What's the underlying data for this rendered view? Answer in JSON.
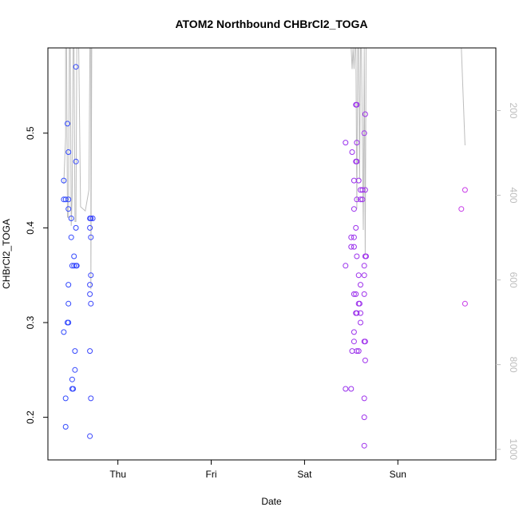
{
  "chart_data": {
    "type": "scatter",
    "title": "ATOM2 Northbound CHBrCl2_TOGA",
    "xlabel": "Date",
    "ylabel": "CHBrCl2_TOGA",
    "x_ticks": [
      "Thu",
      "Fri",
      "Sat",
      "Sun"
    ],
    "x_tick_positions": [
      1,
      2,
      3,
      4
    ],
    "xlim": [
      0.25,
      5.05
    ],
    "ylim": [
      0.155,
      0.59
    ],
    "y_ticks": [
      0.2,
      0.3,
      0.4,
      0.5
    ],
    "y_tick_labels": [
      "0.2",
      "0.3",
      "0.4",
      "0.5"
    ],
    "y2_ticks": [
      200,
      400,
      600,
      800,
      1000
    ],
    "y2_tick_labels": [
      "200",
      "400",
      "600",
      "800",
      "1000"
    ],
    "y2lim": [
      1025,
      52
    ],
    "y2_color": "#bdbdbd",
    "grid": false,
    "marker": "open-circle",
    "color_scale": [
      "#2b4cff",
      "#7a2bf0",
      "#d43be6"
    ],
    "points": [
      {
        "x": 0.42,
        "y": 0.45
      },
      {
        "x": 0.42,
        "y": 0.43
      },
      {
        "x": 0.42,
        "y": 0.29
      },
      {
        "x": 0.44,
        "y": 0.43
      },
      {
        "x": 0.44,
        "y": 0.22
      },
      {
        "x": 0.44,
        "y": 0.19
      },
      {
        "x": 0.46,
        "y": 0.51
      },
      {
        "x": 0.47,
        "y": 0.48
      },
      {
        "x": 0.47,
        "y": 0.43
      },
      {
        "x": 0.47,
        "y": 0.42
      },
      {
        "x": 0.47,
        "y": 0.34
      },
      {
        "x": 0.47,
        "y": 0.32
      },
      {
        "x": 0.47,
        "y": 0.3
      },
      {
        "x": 0.46,
        "y": 0.3
      },
      {
        "x": 0.5,
        "y": 0.41
      },
      {
        "x": 0.5,
        "y": 0.39
      },
      {
        "x": 0.51,
        "y": 0.36
      },
      {
        "x": 0.51,
        "y": 0.24
      },
      {
        "x": 0.51,
        "y": 0.23
      },
      {
        "x": 0.52,
        "y": 0.23
      },
      {
        "x": 0.53,
        "y": 0.37
      },
      {
        "x": 0.53,
        "y": 0.36
      },
      {
        "x": 0.54,
        "y": 0.27
      },
      {
        "x": 0.54,
        "y": 0.25
      },
      {
        "x": 0.55,
        "y": 0.57
      },
      {
        "x": 0.55,
        "y": 0.47
      },
      {
        "x": 0.55,
        "y": 0.4
      },
      {
        "x": 0.55,
        "y": 0.36
      },
      {
        "x": 0.56,
        "y": 0.36
      },
      {
        "x": 0.7,
        "y": 0.41
      },
      {
        "x": 0.7,
        "y": 0.4
      },
      {
        "x": 0.7,
        "y": 0.34
      },
      {
        "x": 0.7,
        "y": 0.33
      },
      {
        "x": 0.7,
        "y": 0.27
      },
      {
        "x": 0.7,
        "y": 0.18
      },
      {
        "x": 0.71,
        "y": 0.41
      },
      {
        "x": 0.71,
        "y": 0.39
      },
      {
        "x": 0.71,
        "y": 0.35
      },
      {
        "x": 0.71,
        "y": 0.32
      },
      {
        "x": 0.71,
        "y": 0.22
      },
      {
        "x": 0.73,
        "y": 0.41
      },
      {
        "x": 3.44,
        "y": 0.49
      },
      {
        "x": 3.44,
        "y": 0.36
      },
      {
        "x": 3.44,
        "y": 0.23
      },
      {
        "x": 3.5,
        "y": 0.39
      },
      {
        "x": 3.5,
        "y": 0.38
      },
      {
        "x": 3.5,
        "y": 0.23
      },
      {
        "x": 3.51,
        "y": 0.48
      },
      {
        "x": 3.51,
        "y": 0.27
      },
      {
        "x": 3.53,
        "y": 0.45
      },
      {
        "x": 3.53,
        "y": 0.42
      },
      {
        "x": 3.53,
        "y": 0.39
      },
      {
        "x": 3.53,
        "y": 0.38
      },
      {
        "x": 3.53,
        "y": 0.33
      },
      {
        "x": 3.53,
        "y": 0.29
      },
      {
        "x": 3.53,
        "y": 0.28
      },
      {
        "x": 3.55,
        "y": 0.53
      },
      {
        "x": 3.55,
        "y": 0.47
      },
      {
        "x": 3.55,
        "y": 0.4
      },
      {
        "x": 3.55,
        "y": 0.33
      },
      {
        "x": 3.55,
        "y": 0.31
      },
      {
        "x": 3.56,
        "y": 0.53
      },
      {
        "x": 3.56,
        "y": 0.49
      },
      {
        "x": 3.56,
        "y": 0.47
      },
      {
        "x": 3.56,
        "y": 0.43
      },
      {
        "x": 3.56,
        "y": 0.37
      },
      {
        "x": 3.56,
        "y": 0.31
      },
      {
        "x": 3.56,
        "y": 0.27
      },
      {
        "x": 3.58,
        "y": 0.45
      },
      {
        "x": 3.58,
        "y": 0.35
      },
      {
        "x": 3.58,
        "y": 0.32
      },
      {
        "x": 3.58,
        "y": 0.27
      },
      {
        "x": 3.59,
        "y": 0.32
      },
      {
        "x": 3.6,
        "y": 0.44
      },
      {
        "x": 3.6,
        "y": 0.43
      },
      {
        "x": 3.6,
        "y": 0.34
      },
      {
        "x": 3.6,
        "y": 0.31
      },
      {
        "x": 3.6,
        "y": 0.3
      },
      {
        "x": 3.62,
        "y": 0.44
      },
      {
        "x": 3.62,
        "y": 0.43
      },
      {
        "x": 3.64,
        "y": 0.5
      },
      {
        "x": 3.64,
        "y": 0.36
      },
      {
        "x": 3.64,
        "y": 0.35
      },
      {
        "x": 3.64,
        "y": 0.33
      },
      {
        "x": 3.64,
        "y": 0.28
      },
      {
        "x": 3.64,
        "y": 0.22
      },
      {
        "x": 3.64,
        "y": 0.2
      },
      {
        "x": 3.64,
        "y": 0.17
      },
      {
        "x": 3.65,
        "y": 0.52
      },
      {
        "x": 3.65,
        "y": 0.44
      },
      {
        "x": 3.65,
        "y": 0.37
      },
      {
        "x": 3.65,
        "y": 0.28
      },
      {
        "x": 3.65,
        "y": 0.26
      },
      {
        "x": 3.66,
        "y": 0.37
      },
      {
        "x": 4.68,
        "y": 0.42
      },
      {
        "x": 4.72,
        "y": 0.44
      },
      {
        "x": 4.72,
        "y": 0.32
      }
    ],
    "y2_series": [
      {
        "segments": [
          [
            [
              0.42,
              373
            ],
            [
              0.44,
              262
            ],
            [
              0.44,
              52
            ],
            [
              0.45,
              52
            ],
            [
              0.46,
              452
            ],
            [
              0.47,
              452
            ],
            [
              0.48,
              52
            ],
            [
              0.49,
              52
            ],
            [
              0.5,
              472
            ],
            [
              0.51,
              402
            ],
            [
              0.52,
              52
            ],
            [
              0.53,
              52
            ],
            [
              0.54,
              462
            ],
            [
              0.55,
              462
            ],
            [
              0.56,
              52
            ],
            [
              0.58,
              52
            ],
            [
              0.6,
              427
            ],
            [
              0.65,
              437
            ],
            [
              0.69,
              387
            ],
            [
              0.7,
              52
            ],
            [
              0.71,
              52
            ],
            [
              0.71,
              622
            ],
            [
              0.72,
              52
            ],
            [
              0.73,
              52
            ]
          ]
        ]
      },
      {
        "segments": [
          [
            [
              3.5,
              52
            ],
            [
              3.51,
              102
            ],
            [
              3.52,
              52
            ],
            [
              3.53,
              102
            ],
            [
              3.54,
              52
            ],
            [
              3.55,
              52
            ],
            [
              3.56,
              432
            ],
            [
              3.57,
              52
            ],
            [
              3.58,
              52
            ],
            [
              3.59,
              362
            ],
            [
              3.6,
              52
            ],
            [
              3.61,
              52
            ],
            [
              3.63,
              482
            ],
            [
              3.64,
              52
            ],
            [
              3.65,
              542
            ],
            [
              3.66,
              52
            ]
          ]
        ]
      },
      {
        "segments": [
          [
            [
              4.68,
              52
            ],
            [
              4.72,
              282
            ]
          ]
        ]
      }
    ]
  }
}
